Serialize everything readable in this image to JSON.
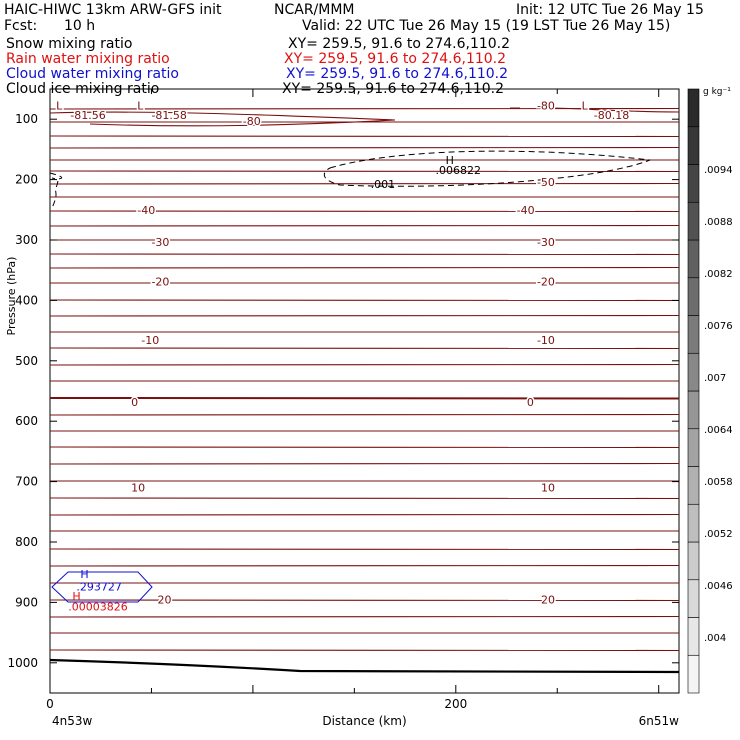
{
  "header": {
    "title_left": "HAIC-HIWC 13km ARW-GFS init",
    "title_center": "NCAR/MMM",
    "init": "Init: 12 UTC Tue 26 May 15",
    "fcst_label": "Fcst:",
    "fcst_value": "10 h",
    "valid": "Valid: 22 UTC Tue 26 May 15 (19 LST Tue 26 May 15)"
  },
  "fields": [
    {
      "label": "Snow mixing ratio",
      "xy": "XY= 259.5, 91.6 to 274.6,110.2",
      "color": "#000000"
    },
    {
      "label": "Rain water mixing ratio",
      "xy": "XY= 259.5, 91.6 to 274.6,110.2",
      "color": "#e01010"
    },
    {
      "label": "Cloud water mixing ratio",
      "xy": "XY= 259.5, 91.6 to 274.6,110.2",
      "color": "#1010d0"
    },
    {
      "label": "Cloud ice mixing ratio",
      "xy": "XY= 259.5, 91.6 to 274.6,110.2",
      "color": "#000000"
    }
  ],
  "chart_data": {
    "type": "contour",
    "xlabel": "Distance (km)",
    "ylabel": "Pressure (hPa)",
    "xlim": [
      0,
      310
    ],
    "ylim": [
      1050,
      50
    ],
    "x_ticks": [
      0,
      200
    ],
    "y_ticks": [
      100,
      200,
      300,
      400,
      500,
      600,
      700,
      800,
      900,
      1000
    ],
    "x_endpoints": [
      "4n53w",
      "6n51w"
    ],
    "colorbar": {
      "unit": "g kg⁻¹",
      "tick_labels": [
        ".004",
        ".0046",
        ".0052",
        ".0058",
        ".0064",
        ".007",
        ".0076",
        ".0082",
        ".0088",
        ".0094"
      ],
      "color_light": "#f4f4f4",
      "color_dark": "#2a2a2a"
    },
    "temperature_contours": {
      "color": "#7a1010",
      "labels": [
        {
          "text": "-80",
          "x": 95,
          "p": 110
        },
        {
          "text": "-81.56",
          "x": 10,
          "p": 100
        },
        {
          "text": "-81.58",
          "x": 50,
          "p": 100
        },
        {
          "text": "L",
          "x": 3,
          "p": 84
        },
        {
          "text": "L",
          "x": 43,
          "p": 84
        },
        {
          "text": "-80",
          "x": 240,
          "p": 84
        },
        {
          "text": "L",
          "x": 262,
          "p": 84
        },
        {
          "text": "-80.18",
          "x": 268,
          "p": 100
        },
        {
          "text": "-50",
          "x": 240,
          "p": 211
        },
        {
          "text": "-40",
          "x": 43,
          "p": 257
        },
        {
          "text": "-40",
          "x": 230,
          "p": 257
        },
        {
          "text": "-30",
          "x": 50,
          "p": 310
        },
        {
          "text": "-30",
          "x": 240,
          "p": 310
        },
        {
          "text": "-20",
          "x": 50,
          "p": 375
        },
        {
          "text": "-20",
          "x": 240,
          "p": 375
        },
        {
          "text": "-10",
          "x": 45,
          "p": 472
        },
        {
          "text": "-10",
          "x": 240,
          "p": 472
        },
        {
          "text": "0",
          "x": 40,
          "p": 575
        },
        {
          "text": "0",
          "x": 235,
          "p": 575
        },
        {
          "text": "10",
          "x": 40,
          "p": 716
        },
        {
          "text": "10",
          "x": 242,
          "p": 716
        },
        {
          "text": "20",
          "x": 53,
          "p": 902
        },
        {
          "text": "20",
          "x": 242,
          "p": 902
        }
      ]
    },
    "annotations": [
      {
        "text": "H",
        "x": 195,
        "p": 174,
        "color": "#000000"
      },
      {
        "text": ".006822",
        "x": 190,
        "p": 191,
        "color": "#000000"
      },
      {
        "text": ".001",
        "x": 158,
        "p": 214,
        "color": "#000000"
      },
      {
        "text": "H",
        "x": 15,
        "p": 860,
        "color": "#1010d0"
      },
      {
        "text": ".293727",
        "x": 13,
        "p": 880,
        "color": "#1010d0"
      },
      {
        "text": "H",
        "x": 11,
        "p": 896,
        "color": "#e01010"
      },
      {
        "text": ".00003826",
        "x": 9,
        "p": 913,
        "color": "#e01010"
      }
    ]
  }
}
